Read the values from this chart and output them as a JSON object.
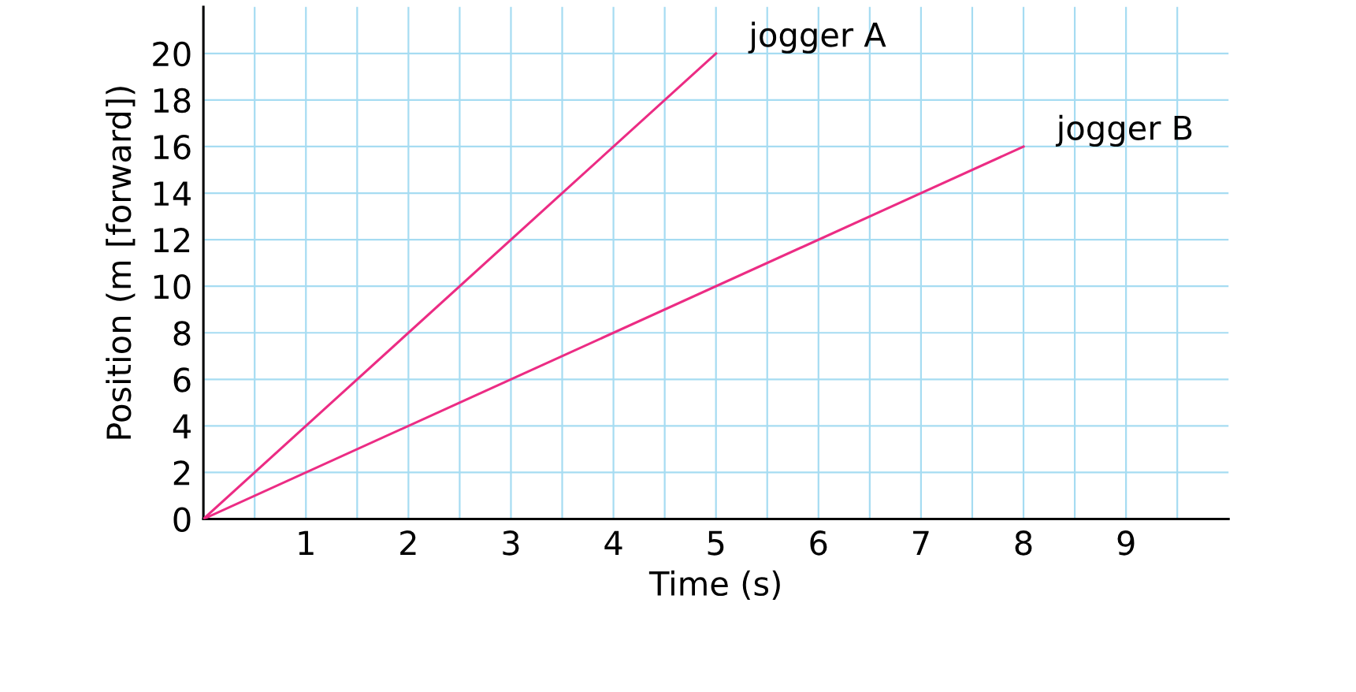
{
  "chart_data": {
    "type": "line",
    "xlabel": "Time (s)",
    "ylabel": "Position (m [forward])",
    "series": [
      {
        "name": "jogger A",
        "color": "#ec2c84",
        "x": [
          0,
          5
        ],
        "values": [
          0,
          20
        ]
      },
      {
        "name": "jogger B",
        "color": "#ec2c84",
        "x": [
          0,
          8
        ],
        "values": [
          0,
          16
        ]
      }
    ],
    "xlim": [
      0,
      10
    ],
    "ylim": [
      0,
      22
    ],
    "xticks": [
      {
        "value": 0,
        "label": null
      },
      {
        "value": 0.5,
        "label": null
      },
      1,
      {
        "value": 1.5,
        "label": null
      },
      2,
      {
        "value": 2.5,
        "label": null
      },
      3,
      {
        "value": 3.5,
        "label": null
      },
      4,
      {
        "value": 4.5,
        "label": null
      },
      5,
      {
        "value": 5.5,
        "label": null
      },
      6,
      {
        "value": 6.5,
        "label": null
      },
      7,
      {
        "value": 7.5,
        "label": null
      },
      8,
      {
        "value": 8.5,
        "label": null
      },
      9,
      {
        "value": 9.5,
        "label": null
      }
    ],
    "yticks": [
      0,
      2,
      4,
      6,
      8,
      10,
      12,
      14,
      16,
      18,
      20
    ],
    "grid": true,
    "marker": "none",
    "line_style": "solid",
    "legend": false
  }
}
